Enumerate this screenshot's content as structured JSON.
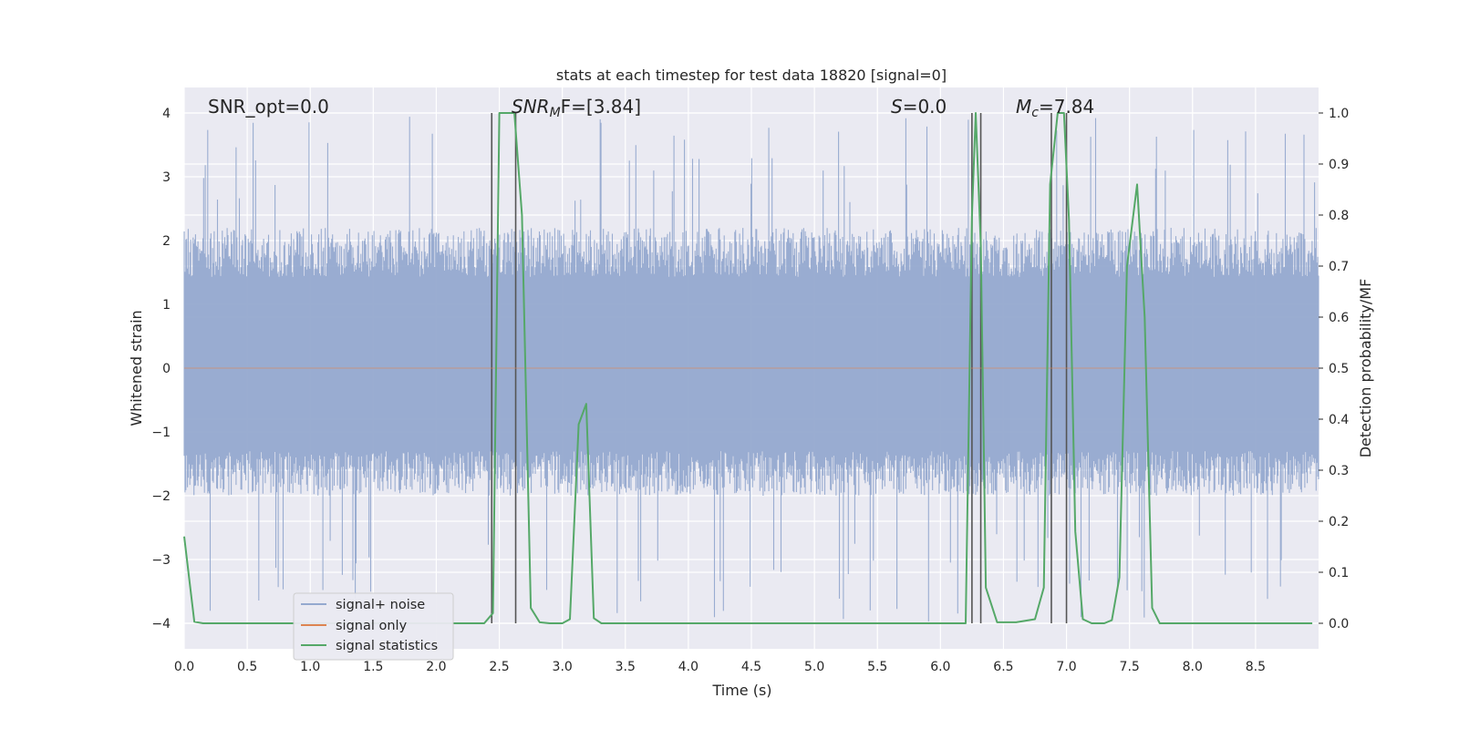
{
  "chart_data": {
    "type": "line",
    "title": "stats at each timestep for test data 18820 [signal=0]",
    "xlabel": "Time (s)",
    "ylabel_left": "Whitened strain",
    "ylabel_right": "Detection probability/MF",
    "xlim": [
      0.0,
      9.0
    ],
    "ylim_left": [
      -4.4,
      4.4
    ],
    "ylim_right": [
      -0.05,
      1.05
    ],
    "xticks": [
      "0.0",
      "0.5",
      "1.0",
      "1.5",
      "2.0",
      "2.5",
      "3.0",
      "3.5",
      "4.0",
      "4.5",
      "5.0",
      "5.5",
      "6.0",
      "6.5",
      "7.0",
      "7.5",
      "8.0",
      "8.5"
    ],
    "yticks_left": [
      "4",
      "3",
      "2",
      "1",
      "0",
      "−1",
      "−2",
      "−3",
      "−4"
    ],
    "yticks_right": [
      "1.0",
      "0.9",
      "0.8",
      "0.7",
      "0.6",
      "0.5",
      "0.4",
      "0.3",
      "0.2",
      "0.1",
      "0.0"
    ],
    "grid": true,
    "legend_position": "lower-left",
    "annotations": {
      "snr_opt": "SNR_opt=0.0",
      "snr_mf_main": "SNR",
      "snr_mf_sub": "M",
      "snr_mf_rest": "F=[3.84]",
      "s_sym": "S",
      "s_rest": "=0.0",
      "mc_main": "M",
      "mc_sub": "c",
      "mc_rest": "=7.84"
    },
    "series": [
      {
        "name": "signal+ noise",
        "color": "#95a9cf",
        "description_envelope": {
          "typical_min": -2.0,
          "typical_max": 2.2,
          "peak_max": 4.0,
          "peak_min": -4.0
        }
      },
      {
        "name": "signal only",
        "color": "#dd8452",
        "values": "flat at 0 (no signal)"
      },
      {
        "name": "signal statistics",
        "color": "#55a868",
        "axis": "right",
        "x": [
          0.0,
          0.08,
          0.15,
          0.3,
          0.6,
          1.0,
          1.5,
          2.0,
          2.3,
          2.38,
          2.45,
          2.5,
          2.55,
          2.62,
          2.68,
          2.75,
          2.82,
          2.9,
          3.0,
          3.06,
          3.13,
          3.19,
          3.25,
          3.31,
          3.4,
          3.6,
          4.0,
          4.5,
          5.0,
          5.5,
          6.0,
          6.2,
          6.25,
          6.28,
          6.32,
          6.36,
          6.45,
          6.6,
          6.75,
          6.82,
          6.87,
          6.93,
          6.98,
          7.02,
          7.07,
          7.13,
          7.2,
          7.3,
          7.36,
          7.42,
          7.48,
          7.56,
          7.62,
          7.68,
          7.74,
          7.8,
          8.0,
          8.5,
          8.95
        ],
        "values": [
          0.17,
          0.003,
          0.0,
          0.0,
          0.0,
          0.0,
          0.0,
          0.0,
          0.0,
          0.0,
          0.02,
          1.0,
          1.0,
          1.0,
          0.8,
          0.03,
          0.002,
          0.0,
          0.0,
          0.008,
          0.39,
          0.43,
          0.01,
          0.0,
          0.0,
          0.0,
          0.0,
          0.0,
          0.0,
          0.0,
          0.0,
          0.0,
          0.8,
          1.0,
          0.74,
          0.07,
          0.002,
          0.002,
          0.008,
          0.07,
          0.86,
          1.0,
          1.0,
          0.79,
          0.18,
          0.008,
          0.0,
          0.0,
          0.006,
          0.09,
          0.7,
          0.86,
          0.6,
          0.03,
          0.0,
          0.0,
          0.0,
          0.0,
          0.0
        ]
      }
    ],
    "vertical_lines_x": [
      2.44,
      2.63,
      6.25,
      6.32,
      6.88,
      7.0
    ]
  }
}
